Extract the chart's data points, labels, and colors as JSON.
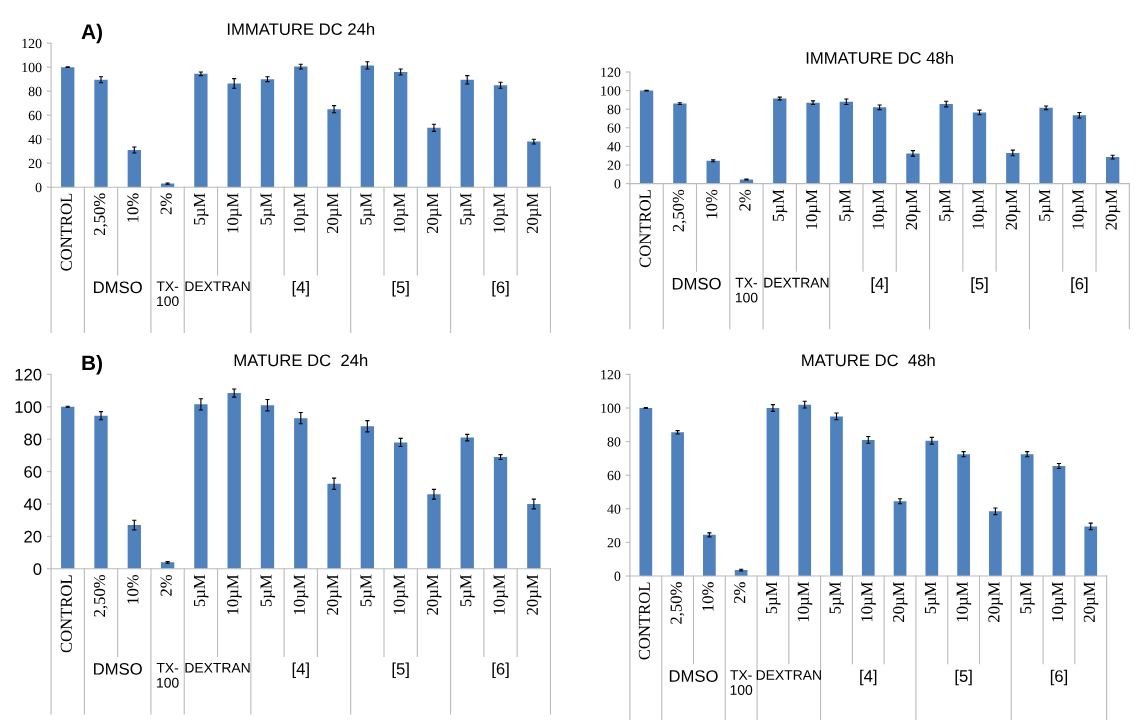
{
  "chart_data": [
    {
      "type": "bar",
      "title": "IMMATURE DC 24h",
      "categories": [
        "CONTROL",
        "2,50%",
        "10%",
        "2%",
        "5µM",
        "10µM",
        "5µM",
        "10µM",
        "20µM",
        "5µM",
        "10µM",
        "20µM",
        "5µM",
        "10µM",
        "20µM"
      ],
      "color": "#4f81bd",
      "values": [
        100,
        89.5,
        31,
        3,
        94.5,
        86.5,
        90,
        100.5,
        65,
        101.5,
        96,
        49.5,
        89.5,
        85,
        38
      ],
      "errors": [
        0.3,
        2.5,
        2.5,
        0.5,
        1.5,
        4,
        2,
        2,
        3,
        3,
        2.5,
        3,
        3.5,
        2.5,
        2
      ],
      "ylim": [
        0,
        120
      ],
      "yticks": [
        0,
        20,
        40,
        60,
        80,
        100,
        120
      ],
      "grid": false,
      "annotations": [
        "A)",
        "DMSO",
        "TX-\n100",
        "DEXTRAN",
        "[4]",
        "[5]",
        "[6]"
      ]
    },
    {
      "type": "bar",
      "title": "IMMATURE DC 48h",
      "categories": [
        "CONTROL",
        "2,50%",
        "10%",
        "2%",
        "5µM",
        "10µM",
        "5µM",
        "10µM",
        "20µM",
        "5µM",
        "10µM",
        "20µM",
        "5µM",
        "10µM",
        "20µM"
      ],
      "color": "#4f81bd",
      "values": [
        100,
        86,
        24.5,
        4.5,
        91.5,
        87,
        88,
        82,
        32.5,
        85.5,
        76.5,
        33,
        81.5,
        73.5,
        28.5
      ],
      "errors": [
        0.3,
        1,
        1,
        0.5,
        1.5,
        2,
        3,
        2.5,
        3,
        3,
        2.5,
        3,
        2,
        3,
        2
      ],
      "ylim": [
        0,
        120
      ],
      "yticks": [
        0,
        20,
        40,
        60,
        80,
        100,
        120
      ],
      "grid": false,
      "annotations": [
        "DMSO",
        "TX-\n100",
        "DEXTRAN",
        "[4]",
        "[5]",
        "[6]"
      ]
    },
    {
      "type": "bar",
      "title": "MATURE DC  24h",
      "categories": [
        "CONTROL",
        "2,50%",
        "10%",
        "2%",
        "5µM",
        "10µM",
        "5µM",
        "10µM",
        "20µM",
        "5µM",
        "10µM",
        "20µM",
        "5µM",
        "10µM",
        "20µM"
      ],
      "color": "#4f81bd",
      "values": [
        100,
        94.5,
        27,
        4,
        101.5,
        108.5,
        101,
        93,
        52.5,
        88,
        78,
        46,
        81,
        69,
        40
      ],
      "errors": [
        0.3,
        2.5,
        3,
        0.5,
        3.5,
        2.5,
        3.5,
        3.5,
        3.5,
        3.5,
        2.5,
        3,
        2,
        1.5,
        3
      ],
      "ylim": [
        0,
        120
      ],
      "yticks": [
        0,
        20,
        40,
        60,
        80,
        100,
        120
      ],
      "grid": false,
      "annotations": [
        "B)",
        "DMSO",
        "TX-\n100",
        "DEXTRAN",
        "[4]",
        "[5]",
        "[6]"
      ]
    },
    {
      "type": "bar",
      "title": "MATURE DC  48h",
      "categories": [
        "CONTROL",
        "2,50%",
        "10%",
        "2%",
        "5µM",
        "10µM",
        "5µM",
        "10µM",
        "20µM",
        "5µM",
        "10µM",
        "20µM",
        "5µM",
        "10µM",
        "20µM"
      ],
      "color": "#4f81bd",
      "values": [
        100,
        85.5,
        24.5,
        3.5,
        100,
        102,
        95,
        81,
        44.5,
        80.5,
        72.5,
        38.5,
        72.5,
        65.5,
        29.5
      ],
      "errors": [
        0.3,
        1,
        1.2,
        0.5,
        2,
        2,
        2,
        2,
        1.5,
        2,
        1.5,
        2,
        1.5,
        1.5,
        2
      ],
      "ylim": [
        0,
        120
      ],
      "yticks": [
        0,
        20,
        40,
        60,
        80,
        100,
        120
      ],
      "grid": false,
      "annotations": [
        "DMSO",
        "TX-\n100",
        "DEXTRAN",
        "[4]",
        "[5]",
        "[6]"
      ]
    }
  ]
}
